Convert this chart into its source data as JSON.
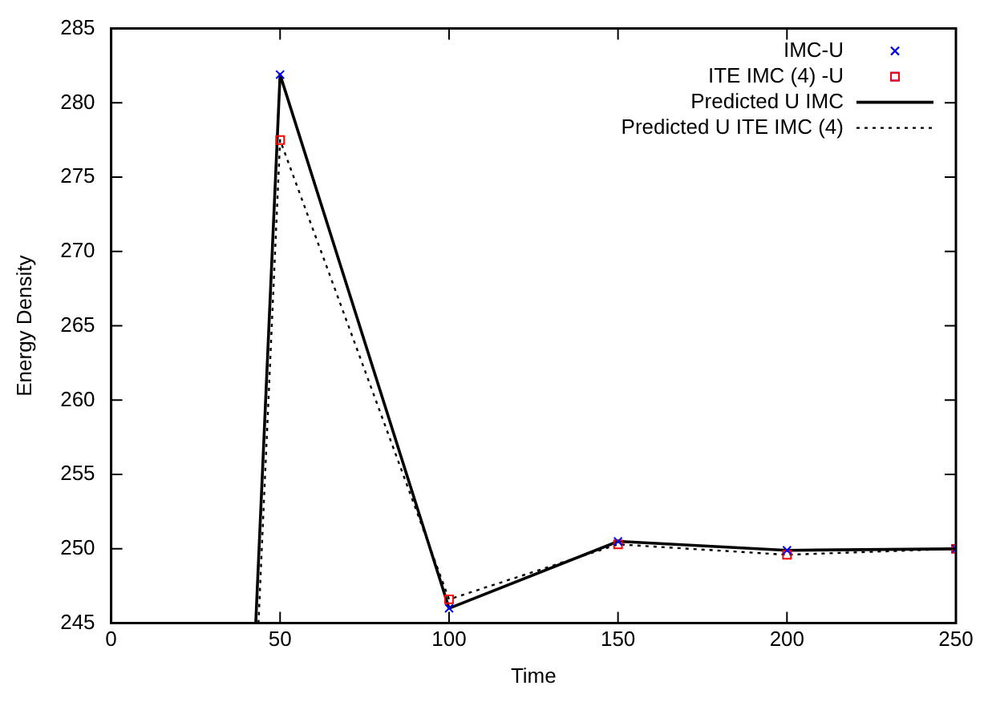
{
  "chart_data": {
    "type": "scatter",
    "xlabel": "Time",
    "ylabel": "Energy Density",
    "xlim": [
      0,
      250
    ],
    "ylim": [
      245,
      285
    ],
    "xticks": [
      0,
      50,
      100,
      150,
      200,
      250
    ],
    "yticks": [
      245,
      250,
      255,
      260,
      265,
      270,
      275,
      280,
      285
    ],
    "grid": false,
    "legend": "top right",
    "series": [
      {
        "name": "IMC-U",
        "marker": "cross",
        "color": "#0000ff",
        "x": [
          50,
          100,
          150,
          200,
          250
        ],
        "values": [
          281.9,
          246.0,
          250.5,
          249.9,
          250.0
        ]
      },
      {
        "name": "ITE IMC (4) -U",
        "marker": "square",
        "color": "#ff0000",
        "x": [
          50,
          100,
          150,
          200,
          250
        ],
        "values": [
          277.5,
          246.6,
          250.3,
          249.6,
          250.0
        ]
      },
      {
        "name": "Predicted U IMC",
        "type": "line",
        "marker": "none",
        "line_style": "solid",
        "color": "#000000",
        "x": [
          42.8,
          50,
          100,
          150,
          200,
          250
        ],
        "values": [
          245,
          281.9,
          246.0,
          250.5,
          249.9,
          250.0
        ]
      },
      {
        "name": "Predicted U ITE IMC (4)",
        "type": "line",
        "marker": "none",
        "line_style": "dotted",
        "color": "#000000",
        "x": [
          43.6,
          50,
          100,
          150,
          200,
          250
        ],
        "values": [
          245,
          277.5,
          246.6,
          250.3,
          249.6,
          250.0
        ]
      }
    ]
  }
}
